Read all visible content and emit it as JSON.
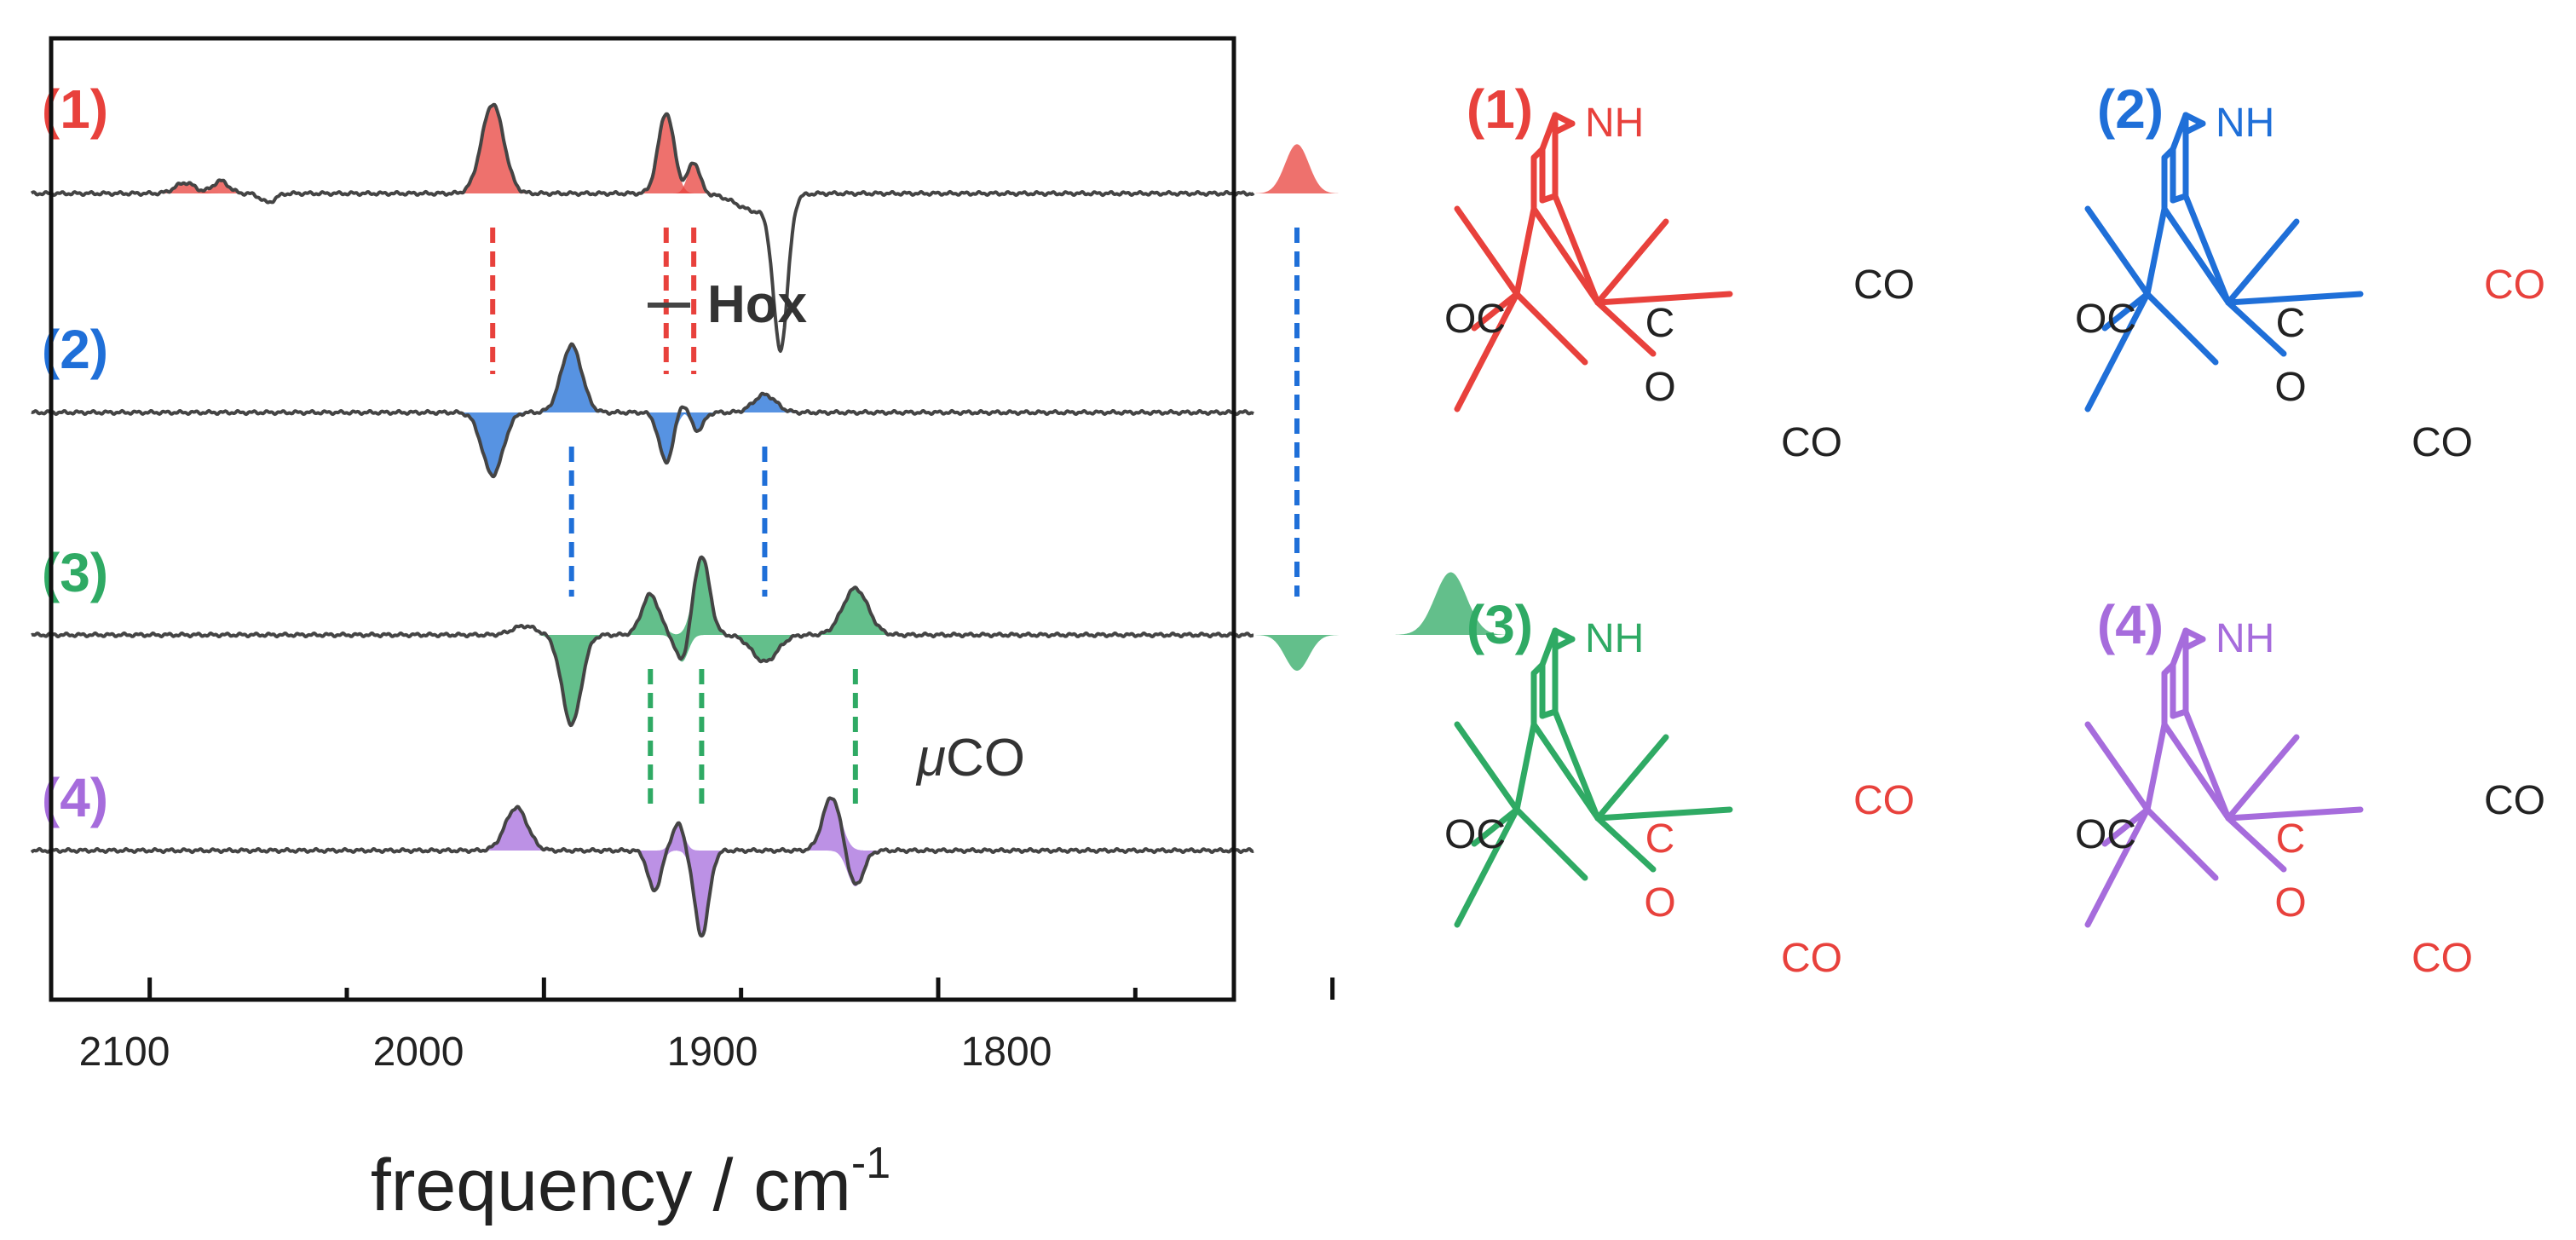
{
  "chart_data": {
    "type": "line",
    "title": "",
    "xlabel": "frequency / cm",
    "xlabel_superscript": "-1",
    "ylabel": "",
    "xlim": [
      2125,
      1825
    ],
    "x_reversed": true,
    "ticks": [
      2100,
      2000,
      1900,
      1800
    ],
    "tick_labels": [
      "2100",
      "2000",
      "1900",
      "1800"
    ],
    "minor_ticks": [
      2050,
      1950,
      1850
    ],
    "grid": false,
    "legend": {
      "label": "Hox",
      "position": "top-center"
    },
    "annotation_muco": {
      "mu": "μ",
      "text": "CO"
    },
    "series": [
      {
        "name": "(1)",
        "color": "#e8413c",
        "peaks": [
          {
            "x": 2013,
            "amp": 1.0,
            "width": 2.8,
            "fill": true
          },
          {
            "x": 1969,
            "amp": 0.9,
            "width": 2.0,
            "fill": true
          },
          {
            "x": 1962,
            "amp": 0.35,
            "width": 1.5,
            "fill": true
          },
          {
            "x": 1809,
            "amp": 0.55,
            "width": 3.0,
            "fill": true
          },
          {
            "x": 2091,
            "amp": 0.12,
            "width": 2.5,
            "fill": true
          },
          {
            "x": 2082,
            "amp": 0.14,
            "width": 2.0,
            "fill": true
          },
          {
            "x": 2070,
            "amp": -0.1,
            "width": 1.8,
            "fill": false
          },
          {
            "x": 1940,
            "amp": -1.65,
            "width": 1.8,
            "fill": false
          },
          {
            "x": 1946,
            "amp": -0.2,
            "width": 5.0,
            "fill": false
          }
        ]
      },
      {
        "name": "(2)",
        "color": "#1f6fd8",
        "peaks": [
          {
            "x": 2013,
            "amp": -0.7,
            "width": 2.6,
            "fill": true
          },
          {
            "x": 1993,
            "amp": 0.75,
            "width": 2.6,
            "fill": true
          },
          {
            "x": 1969,
            "amp": -0.55,
            "width": 1.8,
            "fill": true
          },
          {
            "x": 1965,
            "amp": 0.12,
            "width": 1.2,
            "fill": false
          },
          {
            "x": 1961,
            "amp": -0.2,
            "width": 1.5,
            "fill": true
          },
          {
            "x": 1944,
            "amp": 0.2,
            "width": 2.8,
            "fill": true
          }
        ]
      },
      {
        "name": "(3)",
        "color": "#2faa64",
        "peaks": [
          {
            "x": 2005,
            "amp": 0.1,
            "width": 3.0,
            "fill": false
          },
          {
            "x": 1993,
            "amp": -1.0,
            "width": 2.4,
            "fill": true
          },
          {
            "x": 1973,
            "amp": 0.45,
            "width": 2.2,
            "fill": true
          },
          {
            "x": 1965,
            "amp": -0.3,
            "width": 1.6,
            "fill": true
          },
          {
            "x": 1960,
            "amp": 0.88,
            "width": 2.0,
            "fill": true
          },
          {
            "x": 1944,
            "amp": -0.3,
            "width": 3.2,
            "fill": true
          },
          {
            "x": 1921,
            "amp": 0.52,
            "width": 3.2,
            "fill": true
          },
          {
            "x": 1809,
            "amp": -0.4,
            "width": 3.0,
            "fill": true
          },
          {
            "x": 1770,
            "amp": 0.7,
            "width": 4.0,
            "fill": true
          }
        ]
      },
      {
        "name": "(4)",
        "color": "#a66cdc",
        "peaks": [
          {
            "x": 2007,
            "amp": 0.48,
            "width": 2.8,
            "fill": true
          },
          {
            "x": 1972,
            "amp": -0.45,
            "width": 1.6,
            "fill": true
          },
          {
            "x": 1966,
            "amp": 0.3,
            "width": 1.5,
            "fill": true
          },
          {
            "x": 1960,
            "amp": -0.95,
            "width": 1.8,
            "fill": true
          },
          {
            "x": 1927,
            "amp": 0.6,
            "width": 2.3,
            "fill": true
          },
          {
            "x": 1921,
            "amp": -0.4,
            "width": 2.0,
            "fill": true
          }
        ]
      }
    ],
    "correlation_lines": [
      {
        "x": 2013,
        "color": "#e8413c",
        "between": [
          "(1)",
          "(2)"
        ]
      },
      {
        "x": 1969,
        "color": "#e8413c",
        "between": [
          "(1)",
          "(2)"
        ]
      },
      {
        "x": 1962,
        "color": "#e8413c",
        "between": [
          "(1)",
          "(2)"
        ]
      },
      {
        "x": 1809,
        "color": "#1f6fd8",
        "between": [
          "(1)",
          "(3)"
        ]
      },
      {
        "x": 1993,
        "color": "#1f6fd8",
        "between": [
          "(2)",
          "(3)"
        ]
      },
      {
        "x": 1944,
        "color": "#1f6fd8",
        "between": [
          "(2)",
          "(3)"
        ]
      },
      {
        "x": 1973,
        "color": "#2faa64",
        "between": [
          "(3)",
          "(4)"
        ]
      },
      {
        "x": 1960,
        "color": "#2faa64",
        "between": [
          "(3)",
          "(4)"
        ]
      },
      {
        "x": 1921,
        "color": "#2faa64",
        "between": [
          "(3)",
          "(4)"
        ]
      }
    ]
  },
  "structures": [
    {
      "label": "(1)",
      "color": "#e8413c",
      "nh": "NH",
      "oc": "OC",
      "c": "C",
      "o": "O",
      "co_right": "CO",
      "co_bottom": "CO",
      "oc_color": "#222222",
      "mu_color": "#222222",
      "co_right_color": "#222222",
      "co_bottom_color": "#222222"
    },
    {
      "label": "(2)",
      "color": "#1f6fd8",
      "nh": "NH",
      "oc": "OC",
      "c": "C",
      "o": "O",
      "co_right": "CO",
      "co_bottom": "CO",
      "oc_color": "#222222",
      "mu_color": "#222222",
      "co_right_color": "#e8413c",
      "co_bottom_color": "#222222"
    },
    {
      "label": "(3)",
      "color": "#2faa64",
      "nh": "NH",
      "oc": "OC",
      "c": "C",
      "o": "O",
      "co_right": "CO",
      "co_bottom": "CO",
      "oc_color": "#222222",
      "mu_color": "#e8413c",
      "co_right_color": "#e8413c",
      "co_bottom_color": "#e8413c"
    },
    {
      "label": "(4)",
      "color": "#a66cdc",
      "nh": "NH",
      "oc": "OC",
      "c": "C",
      "o": "O",
      "co_right": "CO",
      "co_bottom": "CO",
      "oc_color": "#222222",
      "mu_color": "#e8413c",
      "co_right_color": "#222222",
      "co_bottom_color": "#e8413c"
    }
  ]
}
